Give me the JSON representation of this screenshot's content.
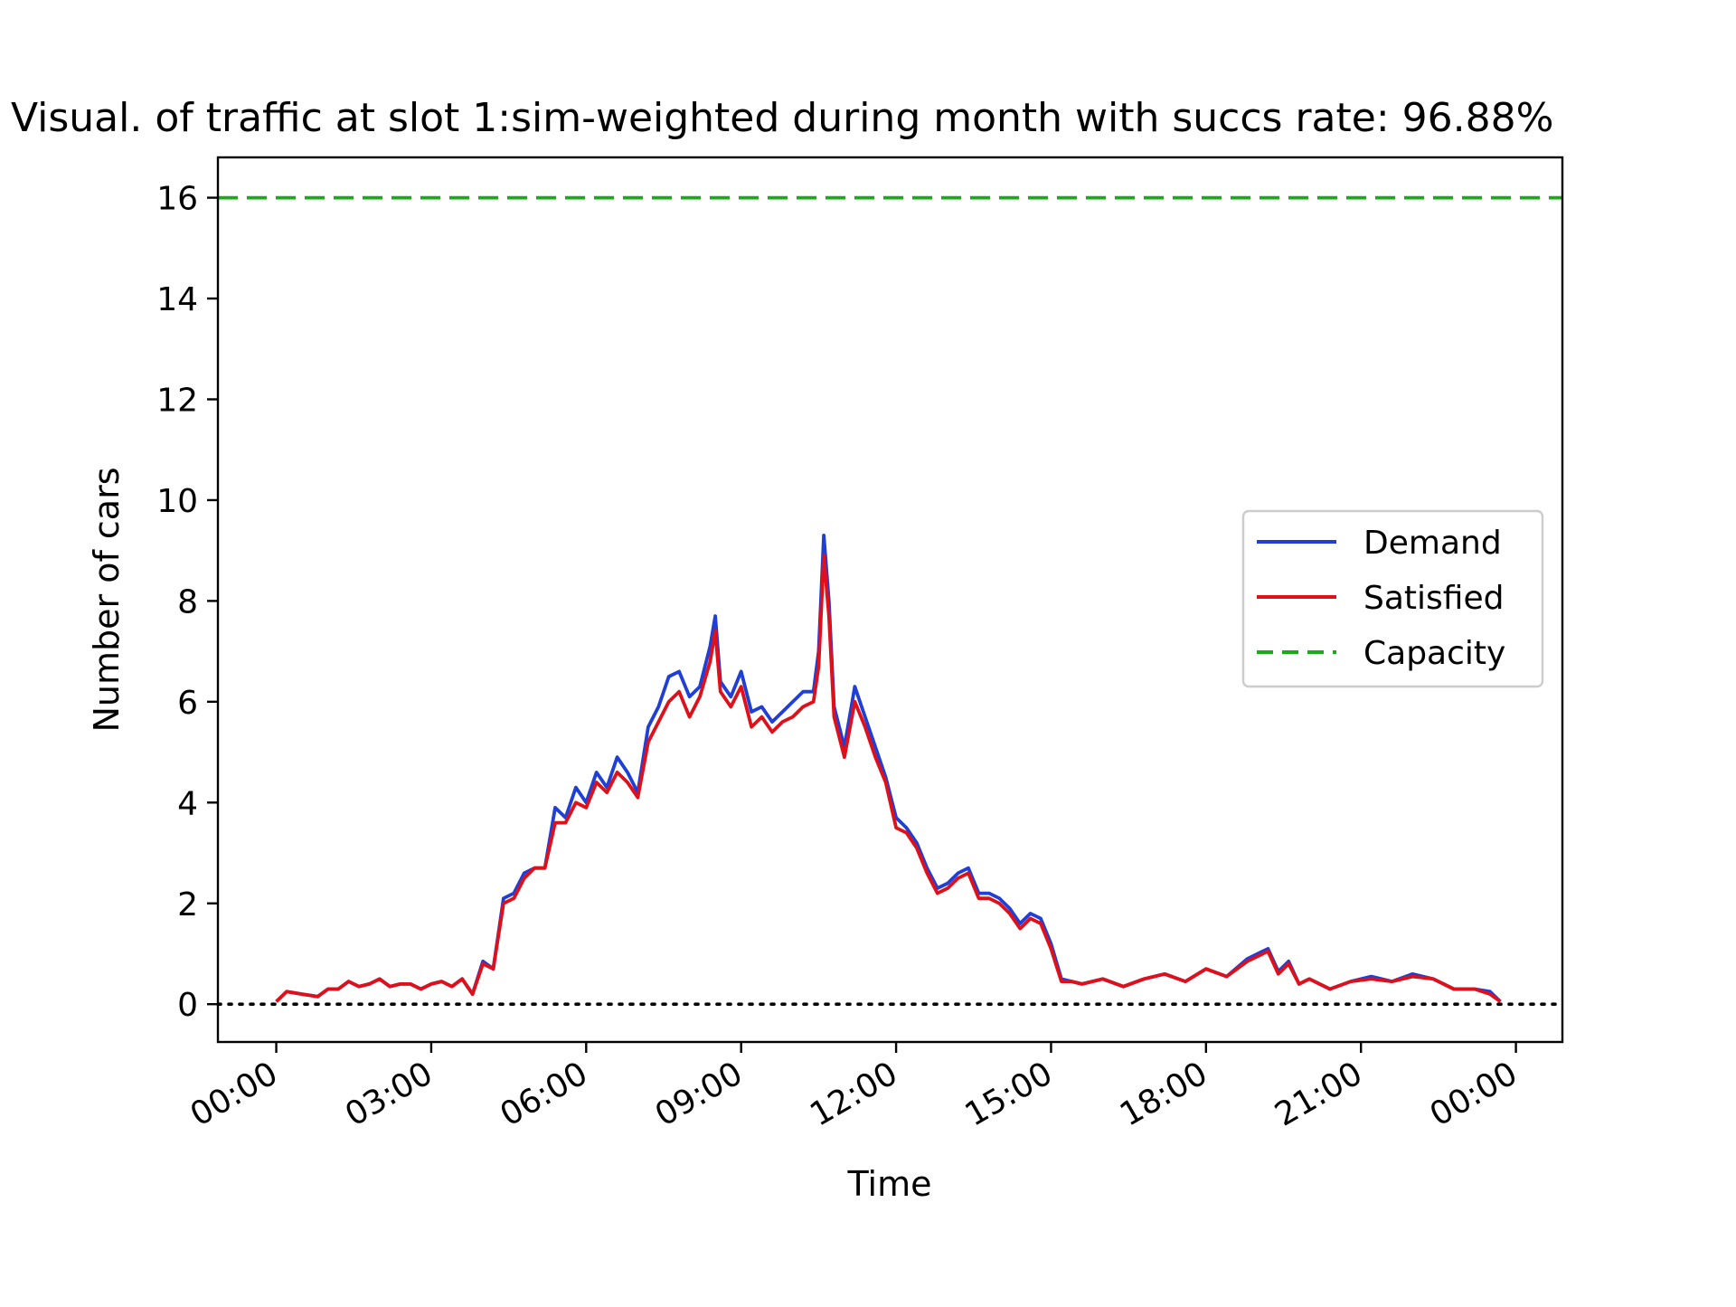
{
  "chart_data": {
    "type": "line",
    "title": "Visual. of traffic at slot 1:sim-weighted during month with succs rate: 96.88%",
    "xlabel": "Time",
    "ylabel": "Number of cars",
    "ylim": [
      -0.75,
      16.8
    ],
    "xlim": [
      -1.13,
      24.9
    ],
    "x_tick_labels": [
      "00:00",
      "03:00",
      "06:00",
      "09:00",
      "12:00",
      "15:00",
      "18:00",
      "21:00",
      "00:00"
    ],
    "x_tick_values": [
      0,
      3,
      6,
      9,
      12,
      15,
      18,
      21,
      24
    ],
    "y_ticks": [
      0,
      2,
      4,
      6,
      8,
      10,
      12,
      14,
      16
    ],
    "legend_position": "right",
    "grid": false,
    "baseline": {
      "value": 0,
      "color": "#000000",
      "style": "dotted"
    },
    "series": [
      {
        "name": "Demand",
        "color": "#1f3fd6",
        "style": "solid",
        "x": [
          0,
          0.2,
          0.5,
          0.8,
          1.0,
          1.2,
          1.4,
          1.6,
          1.8,
          2.0,
          2.2,
          2.4,
          2.6,
          2.8,
          3.0,
          3.2,
          3.4,
          3.6,
          3.8,
          4.0,
          4.2,
          4.4,
          4.6,
          4.8,
          5.0,
          5.2,
          5.4,
          5.6,
          5.8,
          6.0,
          6.2,
          6.4,
          6.6,
          6.8,
          7.0,
          7.2,
          7.4,
          7.6,
          7.8,
          8.0,
          8.2,
          8.4,
          8.5,
          8.6,
          8.8,
          9.0,
          9.2,
          9.4,
          9.6,
          9.8,
          10.0,
          10.2,
          10.4,
          10.5,
          10.6,
          10.7,
          10.8,
          11.0,
          11.2,
          11.4,
          11.6,
          11.8,
          12.0,
          12.2,
          12.4,
          12.6,
          12.8,
          13.0,
          13.2,
          13.4,
          13.6,
          13.8,
          14.0,
          14.2,
          14.4,
          14.6,
          14.8,
          15.0,
          15.2,
          15.4,
          15.6,
          15.8,
          16.0,
          16.4,
          16.8,
          17.2,
          17.6,
          18.0,
          18.4,
          18.8,
          19.2,
          19.4,
          19.6,
          19.8,
          20.0,
          20.4,
          20.8,
          21.2,
          21.6,
          22.0,
          22.4,
          22.8,
          23.2,
          23.5,
          23.7
        ],
        "y": [
          0.05,
          0.25,
          0.2,
          0.15,
          0.3,
          0.3,
          0.45,
          0.35,
          0.4,
          0.5,
          0.35,
          0.4,
          0.4,
          0.3,
          0.4,
          0.45,
          0.35,
          0.5,
          0.2,
          0.85,
          0.7,
          2.1,
          2.2,
          2.6,
          2.7,
          2.7,
          3.9,
          3.7,
          4.3,
          4.0,
          4.6,
          4.3,
          4.9,
          4.6,
          4.2,
          5.5,
          5.9,
          6.5,
          6.6,
          6.1,
          6.3,
          7.1,
          7.7,
          6.4,
          6.1,
          6.6,
          5.8,
          5.9,
          5.6,
          5.8,
          6.0,
          6.2,
          6.2,
          7.0,
          9.3,
          8.0,
          5.9,
          5.1,
          6.3,
          5.7,
          5.1,
          4.5,
          3.7,
          3.5,
          3.2,
          2.7,
          2.3,
          2.4,
          2.6,
          2.7,
          2.2,
          2.2,
          2.1,
          1.9,
          1.6,
          1.8,
          1.7,
          1.2,
          0.5,
          0.45,
          0.4,
          0.45,
          0.5,
          0.35,
          0.5,
          0.6,
          0.45,
          0.7,
          0.55,
          0.9,
          1.1,
          0.65,
          0.85,
          0.4,
          0.5,
          0.3,
          0.45,
          0.55,
          0.45,
          0.6,
          0.5,
          0.3,
          0.3,
          0.25,
          0.05
        ]
      },
      {
        "name": "Satisfied",
        "color": "#e0101a",
        "style": "solid",
        "x": [
          0,
          0.2,
          0.5,
          0.8,
          1.0,
          1.2,
          1.4,
          1.6,
          1.8,
          2.0,
          2.2,
          2.4,
          2.6,
          2.8,
          3.0,
          3.2,
          3.4,
          3.6,
          3.8,
          4.0,
          4.2,
          4.4,
          4.6,
          4.8,
          5.0,
          5.2,
          5.4,
          5.6,
          5.8,
          6.0,
          6.2,
          6.4,
          6.6,
          6.8,
          7.0,
          7.2,
          7.4,
          7.6,
          7.8,
          8.0,
          8.2,
          8.4,
          8.5,
          8.6,
          8.8,
          9.0,
          9.2,
          9.4,
          9.6,
          9.8,
          10.0,
          10.2,
          10.4,
          10.5,
          10.6,
          10.7,
          10.8,
          11.0,
          11.2,
          11.4,
          11.6,
          11.8,
          12.0,
          12.2,
          12.4,
          12.6,
          12.8,
          13.0,
          13.2,
          13.4,
          13.6,
          13.8,
          14.0,
          14.2,
          14.4,
          14.6,
          14.8,
          15.0,
          15.2,
          15.4,
          15.6,
          15.8,
          16.0,
          16.4,
          16.8,
          17.2,
          17.6,
          18.0,
          18.4,
          18.8,
          19.2,
          19.4,
          19.6,
          19.8,
          20.0,
          20.4,
          20.8,
          21.2,
          21.6,
          22.0,
          22.4,
          22.8,
          23.2,
          23.5,
          23.7
        ],
        "y": [
          0.05,
          0.25,
          0.2,
          0.15,
          0.3,
          0.3,
          0.45,
          0.35,
          0.4,
          0.5,
          0.35,
          0.4,
          0.4,
          0.3,
          0.4,
          0.45,
          0.35,
          0.5,
          0.2,
          0.8,
          0.7,
          2.0,
          2.1,
          2.5,
          2.7,
          2.7,
          3.6,
          3.6,
          4.0,
          3.9,
          4.4,
          4.2,
          4.6,
          4.4,
          4.1,
          5.2,
          5.6,
          6.0,
          6.2,
          5.7,
          6.1,
          6.8,
          7.4,
          6.2,
          5.9,
          6.3,
          5.5,
          5.7,
          5.4,
          5.6,
          5.7,
          5.9,
          6.0,
          6.7,
          8.9,
          7.7,
          5.7,
          4.9,
          6.0,
          5.5,
          4.9,
          4.4,
          3.5,
          3.4,
          3.1,
          2.6,
          2.2,
          2.3,
          2.5,
          2.6,
          2.1,
          2.1,
          2.0,
          1.8,
          1.5,
          1.7,
          1.6,
          1.1,
          0.45,
          0.45,
          0.4,
          0.45,
          0.5,
          0.35,
          0.5,
          0.6,
          0.45,
          0.7,
          0.55,
          0.85,
          1.05,
          0.6,
          0.8,
          0.4,
          0.5,
          0.3,
          0.45,
          0.5,
          0.45,
          0.55,
          0.5,
          0.3,
          0.3,
          0.2,
          0.05
        ]
      },
      {
        "name": "Capacity",
        "color": "#1aaa1a",
        "style": "dashed",
        "x": [
          -1.13,
          24.9
        ],
        "y": [
          16,
          16
        ]
      }
    ]
  }
}
